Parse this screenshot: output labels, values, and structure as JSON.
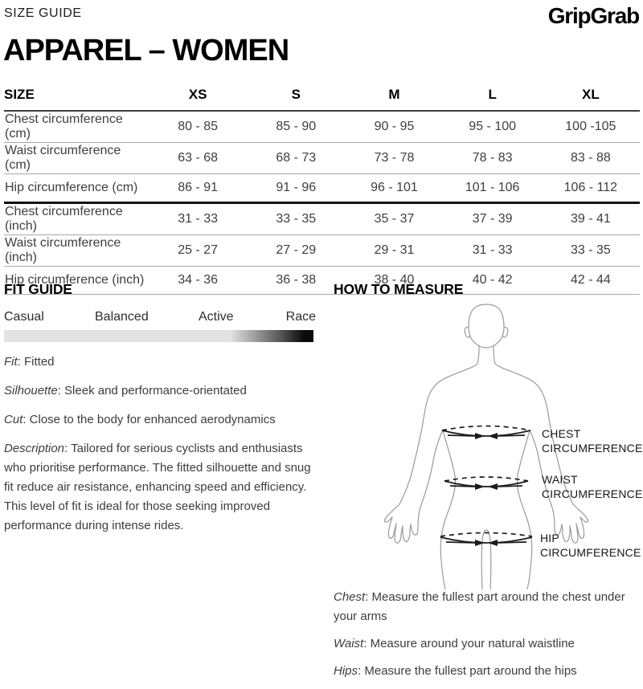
{
  "page": {
    "kicker": "SIZE GUIDE",
    "brand": "GripGrab",
    "heading": "APPAREL – WOMEN"
  },
  "size_table": {
    "columns": [
      "SIZE",
      "XS",
      "S",
      "M",
      "L",
      "XL"
    ],
    "rows": [
      {
        "label": "Chest circumference (cm)",
        "values": [
          "80 - 85",
          "85 - 90",
          "90 - 95",
          "95 - 100",
          "100 -105"
        ]
      },
      {
        "label": "Waist circumference (cm)",
        "values": [
          "63 - 68",
          "68 - 73",
          "73 - 78",
          "78 - 83",
          "83 - 88"
        ]
      },
      {
        "label": "Hip circumference (cm)",
        "values": [
          "86 - 91",
          "91 - 96",
          "96 - 101",
          "101 - 106",
          "106 - 112"
        ]
      },
      {
        "label": "Chest circumference (inch)",
        "values": [
          "31 - 33",
          "33 - 35",
          "35 - 37",
          "37 - 39",
          "39 - 41"
        ]
      },
      {
        "label": "Waist circumference (inch)",
        "values": [
          "25 - 27",
          "27 - 29",
          "29 - 31",
          "31 - 33",
          "33 - 35"
        ]
      },
      {
        "label": "Hip circumference (inch)",
        "values": [
          "34 - 36",
          "36 - 38",
          "38 - 40",
          "40 - 42",
          "42 - 44"
        ]
      }
    ]
  },
  "fit_guide": {
    "title": "FIT GUIDE",
    "scale_labels": [
      "Casual",
      "Balanced",
      "Active",
      "Race"
    ],
    "details": [
      {
        "term": "Fit",
        "text": ": Fitted"
      },
      {
        "term": "Silhouette",
        "text": ": Sleek and performance-orientated"
      },
      {
        "term": "Cut",
        "text": ": Close to the body for enhanced aerodynamics"
      },
      {
        "term": "Description",
        "text": ": Tailored for serious cyclists and enthusiasts who prioritise performance. The fitted silhouette and snug fit reduce air resistance, enhancing speed and efficiency. This level of fit is ideal for those seeking improved performance during intense rides."
      }
    ]
  },
  "how_to_measure": {
    "title": "HOW TO MEASURE",
    "diagram_labels": {
      "chest": "CHEST\nCIRCUMFERENCE",
      "waist": "WAIST\nCIRCUMFERENCE",
      "hip": "HIP\nCIRCUMFERENCE"
    },
    "notes": [
      {
        "term": "Chest",
        "text": ": Measure the fullest part around the chest under your arms"
      },
      {
        "term": "Waist",
        "text": ": Measure around your natural waistline"
      },
      {
        "term": "Hips",
        "text": ": Measure the fullest part around the hips"
      }
    ]
  },
  "colors": {
    "heading_black": "#000000",
    "body_text": "#3d3d3d",
    "row_divider": "#a8a8a8",
    "section_divider": "#121212",
    "figure_stroke": "#9a9a9a",
    "tape_stroke": "#1b1b1b",
    "bar_light": "#e3e3e3",
    "bar_dark": "#0a0a0a"
  }
}
